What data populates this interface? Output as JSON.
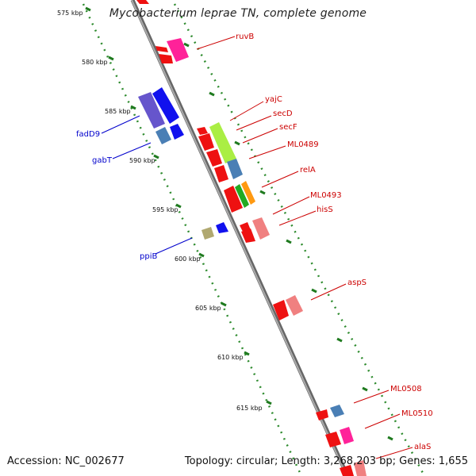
{
  "title": "Mycobacterium leprae TN, complete genome",
  "footer": {
    "accession": "Accession: NC_002677",
    "summary": "Topology: circular; Length: 3,268,203 bp; Genes: 1,655"
  },
  "colors": {
    "backbone": "#8a8a8a",
    "track_dots": "#2e8b2e",
    "forward_label": "#cc0000",
    "reverse_label": "#0000cc",
    "gene_red": "#ee1111",
    "gene_magenta": "#ff2299",
    "gene_steel": "#4a7fb5",
    "gene_lime": "#aaee44",
    "gene_pink": "#f08080",
    "gene_blue": "#1111ee",
    "gene_purple": "#6655cc",
    "gene_olive": "#b0a870"
  },
  "kbp_ticks": [
    "575 kbp",
    "580 kbp",
    "585 kbp",
    "590 kbp",
    "595 kbp",
    "600 kbp",
    "605 kbp",
    "610 kbp",
    "615 kbp"
  ],
  "forward_genes": [
    "ruvB",
    "yajC",
    "secD",
    "secF",
    "ML0489",
    "relA",
    "ML0493",
    "hisS",
    "aspS",
    "ML0508",
    "ML0510",
    "alaS"
  ],
  "reverse_genes": [
    "fadD9",
    "gabT",
    "ppiB"
  ]
}
